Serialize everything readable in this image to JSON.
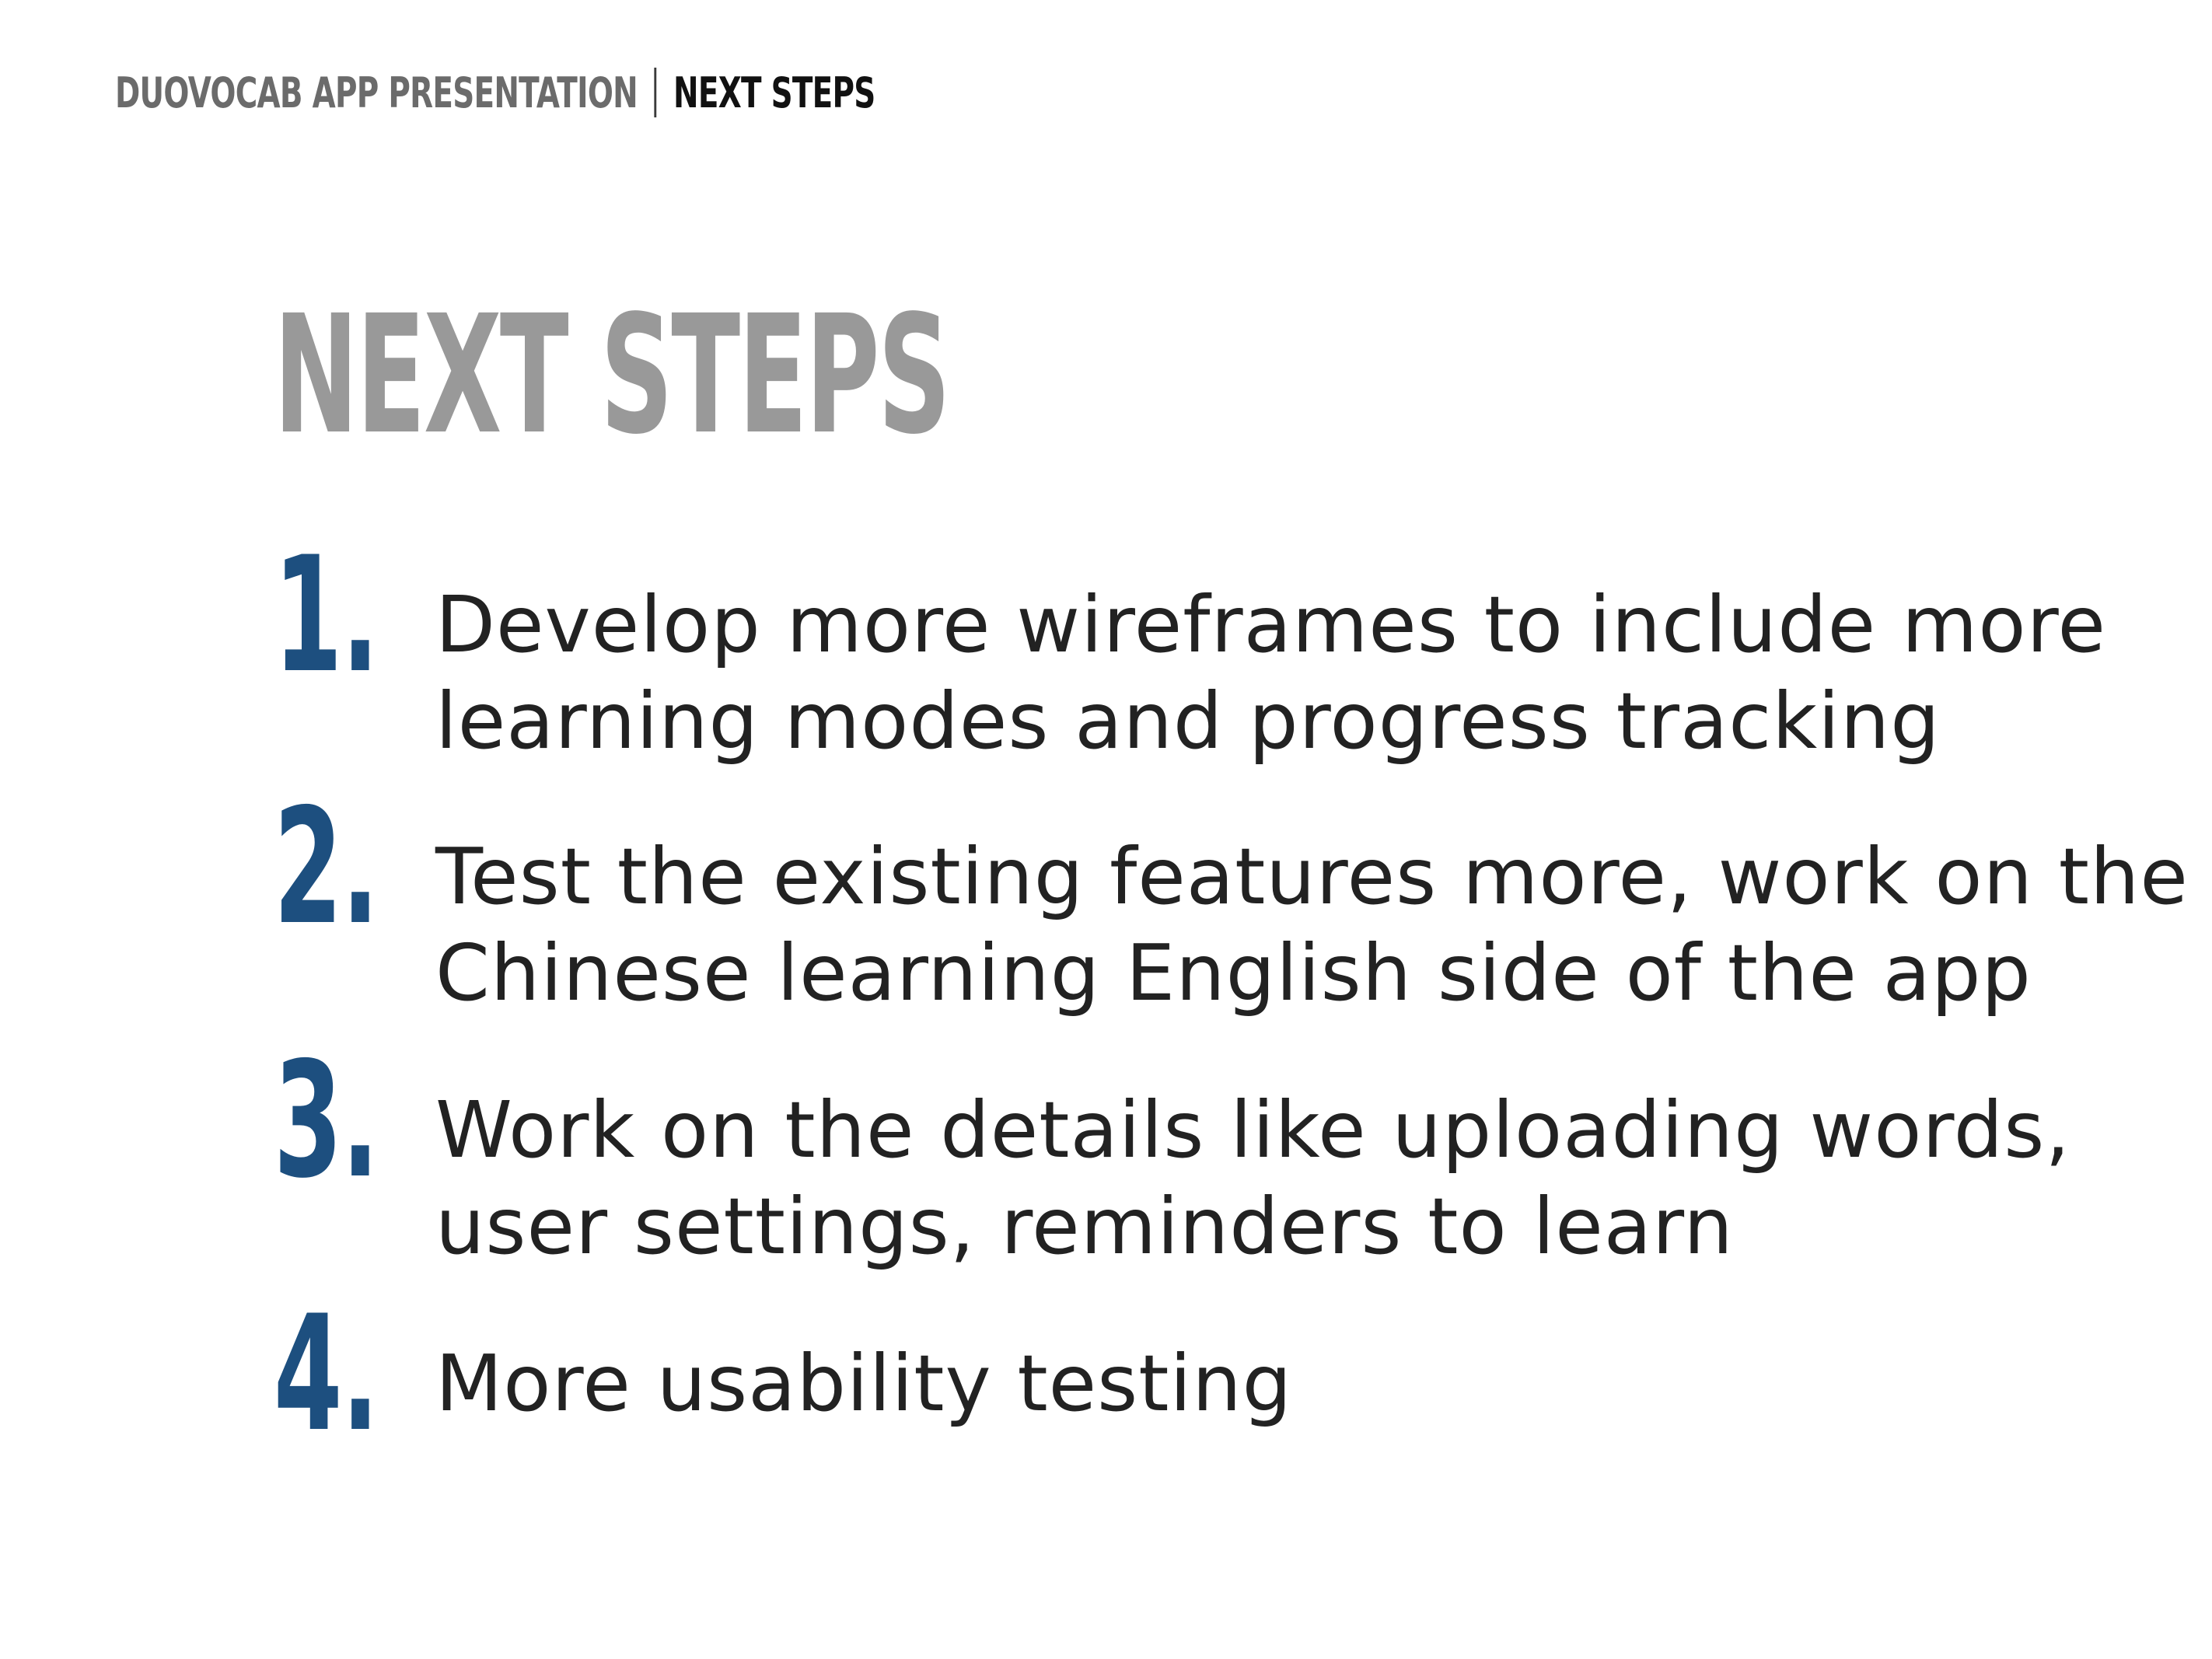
{
  "header": {
    "section": "DUOVOCAB APP PRESENTATION",
    "current": "NEXT STEPS"
  },
  "title": "NEXT STEPS",
  "steps": [
    {
      "number": "1.",
      "lines": [
        "Develop more wireframes to include more",
        "learning modes and progress tracking"
      ]
    },
    {
      "number": "2.",
      "lines": [
        "Test the existing features more, work on the",
        "Chinese learning English side of the app"
      ]
    },
    {
      "number": "3.",
      "lines": [
        "Work on the details like uploading words,",
        "user settings, reminders to learn"
      ]
    },
    {
      "number": "4.",
      "lines": [
        "More usability testing"
      ]
    }
  ],
  "colors": {
    "number_accent": "#1d4f7f",
    "title_gray": "#999999",
    "header_gray": "#6b6b6b"
  }
}
